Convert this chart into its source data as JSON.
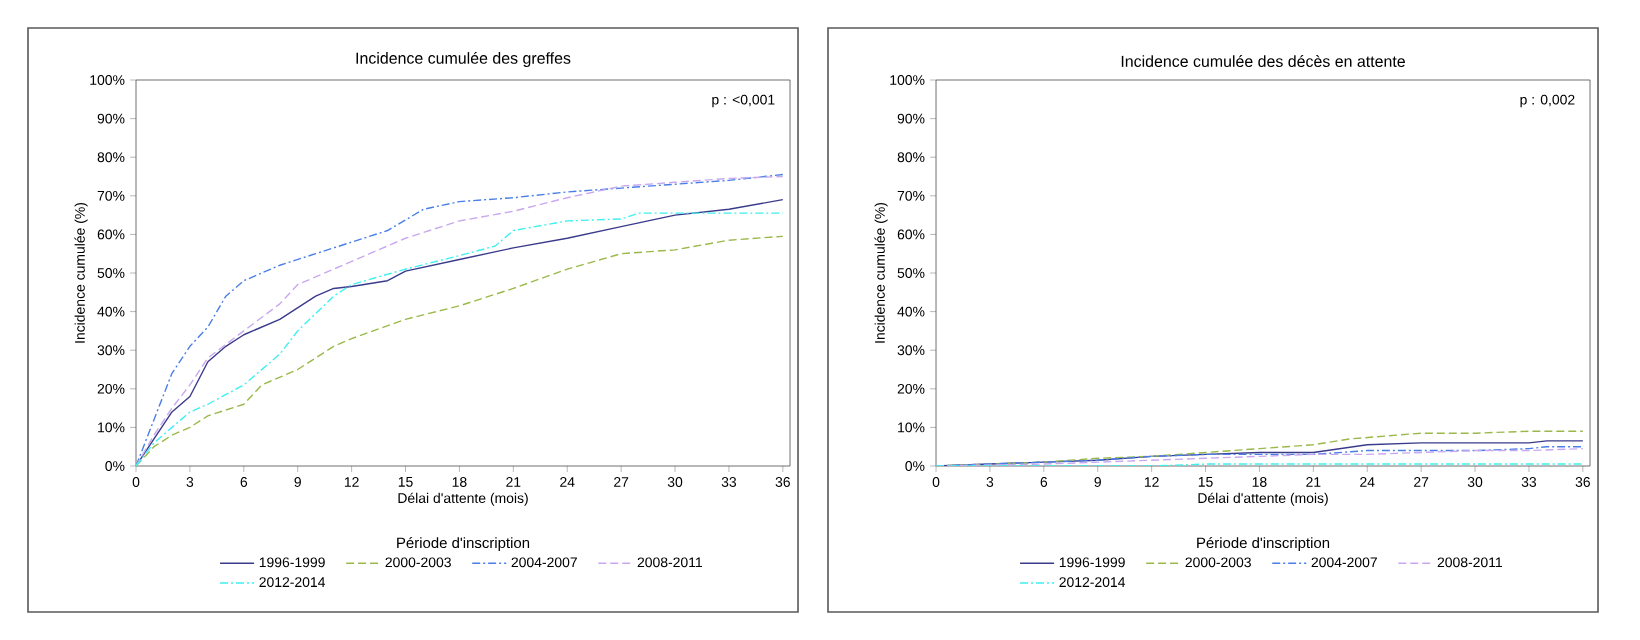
{
  "chart_data": [
    {
      "type": "line",
      "title": "Incidence cumulée des greffes",
      "xlabel": "Délai d'attente (mois)",
      "ylabel": "Incidence cumulée (%)",
      "legend_title": "Période d'inscription",
      "legend": "bottom",
      "annotations": [
        "p : <0,001"
      ],
      "xlim": [
        0,
        36.4
      ],
      "xticks": [
        0,
        3,
        6,
        9,
        12,
        15,
        18,
        21,
        24,
        27,
        30,
        33,
        36
      ],
      "ylim": [
        0,
        100
      ],
      "yticks": [
        {
          "value": 0,
          "label": "0%"
        },
        {
          "value": 10,
          "label": "10%"
        },
        {
          "value": 20,
          "label": "20%"
        },
        {
          "value": 30,
          "label": "30%"
        },
        {
          "value": 40,
          "label": "40%"
        },
        {
          "value": 50,
          "label": "50%"
        },
        {
          "value": 60,
          "label": "60%"
        },
        {
          "value": 70,
          "label": "70%"
        },
        {
          "value": 80,
          "label": "80%"
        },
        {
          "value": 90,
          "label": "90%"
        },
        {
          "value": 100,
          "label": "100%"
        }
      ],
      "series": [
        {
          "name": "1996-1999",
          "color": "#3b3b8c",
          "line_style": "solid",
          "x": [
            0,
            1,
            2,
            3,
            4,
            5,
            6,
            8,
            10,
            11,
            12,
            14,
            15,
            18,
            21,
            24,
            27,
            30,
            33,
            36
          ],
          "values": [
            0,
            7,
            14,
            18,
            27,
            31,
            34,
            38,
            44,
            46,
            46.5,
            48,
            50.5,
            53.5,
            56.5,
            59,
            62,
            65,
            66.5,
            69
          ]
        },
        {
          "name": "2000-2003",
          "color": "#9ab94a",
          "line_style": "dashed",
          "x": [
            0,
            1,
            2,
            3,
            4,
            6,
            7,
            9,
            11,
            12,
            15,
            18,
            21,
            24,
            27,
            30,
            33,
            36
          ],
          "values": [
            0,
            5,
            8,
            10,
            13,
            16,
            21,
            25,
            31,
            33,
            38,
            41.5,
            46,
            51,
            55,
            56,
            58.5,
            59.5
          ]
        },
        {
          "name": "2004-2007",
          "color": "#4a7fe8",
          "line_style": "dotted",
          "x": [
            0,
            1,
            2,
            3,
            4,
            5,
            6,
            8,
            10,
            12,
            14,
            16,
            18,
            21,
            24,
            27,
            30,
            33,
            36
          ],
          "values": [
            0,
            12,
            24,
            31,
            36,
            44,
            48,
            52,
            55,
            58,
            61,
            66.5,
            68.5,
            69.5,
            71,
            72,
            73,
            74,
            75.5
          ]
        },
        {
          "name": "2008-2011",
          "color": "#c9a8f0",
          "line_style": "dashed",
          "x": [
            0,
            1,
            2,
            3,
            4,
            6,
            8,
            9,
            12,
            15,
            18,
            21,
            24,
            27,
            30,
            33,
            36
          ],
          "values": [
            0,
            8,
            15,
            21,
            28,
            35,
            42,
            47,
            53,
            59,
            63.5,
            66,
            69.5,
            72.5,
            73.5,
            74.5,
            75
          ]
        },
        {
          "name": "2012-2014",
          "color": "#3ff0f0",
          "line_style": "dotted",
          "x": [
            0,
            1,
            2,
            3,
            4,
            6,
            8,
            9,
            11,
            12,
            15,
            18,
            20,
            21,
            24,
            27,
            28,
            30,
            36
          ],
          "values": [
            0,
            6,
            10,
            14,
            16,
            21,
            29,
            35,
            44,
            47,
            51,
            54.5,
            57,
            61,
            63.5,
            64,
            65.5,
            65.5,
            65.5
          ]
        }
      ]
    },
    {
      "type": "line",
      "title": "Incidence cumulée des décès en attente",
      "xlabel": "Délai d'attente (mois)",
      "ylabel": "Incidence cumulée (%)",
      "legend_title": "Période d'inscription",
      "legend": "bottom",
      "annotations": [
        "p : 0,002"
      ],
      "xlim": [
        0,
        36.4
      ],
      "xticks": [
        0,
        3,
        6,
        9,
        12,
        15,
        18,
        21,
        24,
        27,
        30,
        33,
        36
      ],
      "ylim": [
        0,
        100
      ],
      "yticks": [
        {
          "value": 0,
          "label": "0%"
        },
        {
          "value": 10,
          "label": "10%"
        },
        {
          "value": 20,
          "label": "20%"
        },
        {
          "value": 30,
          "label": "30%"
        },
        {
          "value": 40,
          "label": "40%"
        },
        {
          "value": 50,
          "label": "50%"
        },
        {
          "value": 60,
          "label": "60%"
        },
        {
          "value": 70,
          "label": "70%"
        },
        {
          "value": 80,
          "label": "80%"
        },
        {
          "value": 90,
          "label": "90%"
        },
        {
          "value": 100,
          "label": "100%"
        }
      ],
      "series": [
        {
          "name": "1996-1999",
          "color": "#3b3b8c",
          "line_style": "solid",
          "x": [
            0,
            3,
            6,
            9,
            12,
            15,
            18,
            21,
            24,
            27,
            30,
            33,
            34,
            36
          ],
          "values": [
            0,
            0.5,
            1,
            1.5,
            2.5,
            3,
            3.5,
            3.5,
            5.5,
            6,
            6,
            6,
            6.5,
            6.5
          ]
        },
        {
          "name": "2000-2003",
          "color": "#9ab94a",
          "line_style": "dashed",
          "x": [
            0,
            3,
            6,
            9,
            12,
            15,
            18,
            21,
            23,
            27,
            30,
            33,
            36
          ],
          "values": [
            0,
            0.5,
            1,
            2,
            2.5,
            3.5,
            4.5,
            5.5,
            7,
            8.5,
            8.5,
            9,
            9
          ]
        },
        {
          "name": "2004-2007",
          "color": "#4a7fe8",
          "line_style": "dotted",
          "x": [
            0,
            3,
            6,
            9,
            12,
            15,
            18,
            21,
            24,
            27,
            30,
            33,
            34,
            36
          ],
          "values": [
            0,
            0.5,
            1,
            1.5,
            2.5,
            3,
            3,
            3,
            4,
            4,
            4,
            4.5,
            5,
            5
          ]
        },
        {
          "name": "2008-2011",
          "color": "#c9a8f0",
          "line_style": "dashed",
          "x": [
            0,
            6,
            9,
            12,
            15,
            18,
            21,
            24,
            27,
            30,
            33,
            36
          ],
          "values": [
            0,
            0.5,
            1,
            1.5,
            2,
            2.5,
            3,
            3,
            3.5,
            4,
            4,
            4.5
          ]
        },
        {
          "name": "2012-2014",
          "color": "#3ff0f0",
          "line_style": "dotted",
          "x": [
            0,
            6,
            12,
            15,
            36
          ],
          "values": [
            0,
            0,
            0,
            0.5,
            0.5
          ]
        }
      ]
    }
  ]
}
